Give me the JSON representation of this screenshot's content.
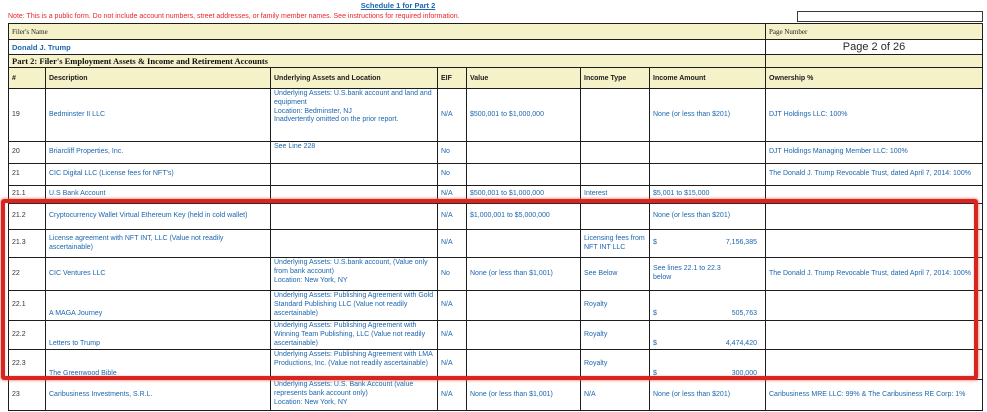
{
  "page": {
    "title": "Schedule 1 for Part 2",
    "note": "Note: This is a public form. Do not include account numbers, street addresses, or family member names. See instructions for required information.",
    "filer_label": "Filer's Name",
    "filer_name": "Donald J. Trump",
    "page_number_label": "Page Number",
    "page_number": "Page 2 of 26",
    "section_title": "Part 2: Filer's Employment Assets & Income and Retirement Accounts"
  },
  "colors": {
    "header_fill": "#f5f1c8",
    "body_text_blue": "#1b66ae",
    "note_red": "#e8252b",
    "highlight_red": "#d7261f"
  },
  "table": {
    "headers": [
      "#",
      "Description",
      "Underlying Assets and Location",
      "EIF",
      "Value",
      "Income Type",
      "Income Amount",
      "Ownership %"
    ],
    "rows": [
      {
        "num": "19",
        "description": "Bedminster II LLC",
        "underlying": "Underlying Assets: U.S.bank account and land and equipment\nLocation: Bedminster, NJ\nInadvertently omitted on the prior report.",
        "eif": "N/A",
        "value": "$500,001 to $1,000,000",
        "income_type": "",
        "income_amount": "None (or less than $201)",
        "ownership": "DJT Holdings LLC: 100%"
      },
      {
        "num": "20",
        "description": "Briarcliff Properties, Inc.",
        "underlying": "See Line 228",
        "eif": "No",
        "value": "",
        "income_type": "",
        "income_amount": "",
        "ownership": "DJT Holdings Managing Member LLC: 100%"
      },
      {
        "num": "21",
        "description": "CIC Digital LLC (License fees for NFT's)",
        "underlying": "",
        "eif": "No",
        "value": "",
        "income_type": "",
        "income_amount": "",
        "ownership": "The Donald J. Trump Revocable Trust, dated April 7, 2014: 100%"
      },
      {
        "num": "21.1",
        "description": "U.S Bank Account",
        "underlying": "",
        "eif": "N/A",
        "value": "$500,001 to $1,000,000",
        "income_type": "Interest",
        "income_amount": "$5,001 to $15,000",
        "ownership": ""
      },
      {
        "num": "21.2",
        "description": "Cryptocurrency Wallet  Virtual Ethereum Key (held in cold wallet)",
        "underlying": "",
        "eif": "N/A",
        "value": "$1,000,001 to $5,000,000",
        "income_type": "",
        "income_amount": "None (or less than $201)",
        "ownership": ""
      },
      {
        "num": "21.3",
        "description": "License agreement with NFT INT, LLC (Value not readily ascertainable)",
        "underlying": "",
        "eif": "N/A",
        "value": "",
        "income_type": "Licensing fees from NFT INT LLC",
        "income_amount": {
          "currency": "$",
          "value": "7,156,385"
        },
        "ownership": ""
      },
      {
        "num": "22",
        "description": "CIC Ventures LLC",
        "underlying": "Underlying Assets: U.S.bank account, (Value only from bank account)\nLocation: New York, NY",
        "eif": "No",
        "value": "None (or less than $1,001)",
        "income_type": "See Below",
        "income_amount": "See lines 22.1 to 22.3\nbelow",
        "ownership": "The Donald J. Trump Revocable Trust, dated April 7, 2014: 100%"
      },
      {
        "num": "22.1",
        "description": "A MAGA Journey",
        "underlying": "Underlying Assets: Publishing Agreement with Gold Standard Publishing LLC (Value not readily ascertainable)",
        "eif": "N/A",
        "value": "",
        "income_type": "Royalty",
        "income_amount": {
          "currency": "$",
          "value": "505,763"
        },
        "ownership": ""
      },
      {
        "num": "22.2",
        "description": "Letters to Trump",
        "underlying": "Underlying Assets: Publishing Agreement with Winning Team Publishing, LLC (Value not readily ascertainable)",
        "eif": "N/A",
        "value": "",
        "income_type": "Royalty",
        "income_amount": {
          "currency": "$",
          "value": "4,474,420"
        },
        "ownership": ""
      },
      {
        "num": "22.3",
        "description": "The Greenwood Bible",
        "underlying": "Underlying Assets: Publishing Agreement with LMA Productions, Inc. (Value not readily ascertainable)",
        "eif": "N/A",
        "value": "",
        "income_type": "Royalty",
        "income_amount": {
          "currency": "$",
          "value": "300,000"
        },
        "ownership": ""
      },
      {
        "num": "23",
        "description": "Caribusiness Investments, S.R.L.",
        "underlying": "Underlying Assets: U.S. Bank Account (value represents bank account only)\nLocation: New York, NY",
        "eif": "N/A",
        "value": "None (or less than $1,001)",
        "income_type": "N/A",
        "income_amount": "None (or less than $201)",
        "ownership": "Caribusiness MRE LLC: 99% & The Caribusiness RE Corp: 1%"
      }
    ]
  }
}
